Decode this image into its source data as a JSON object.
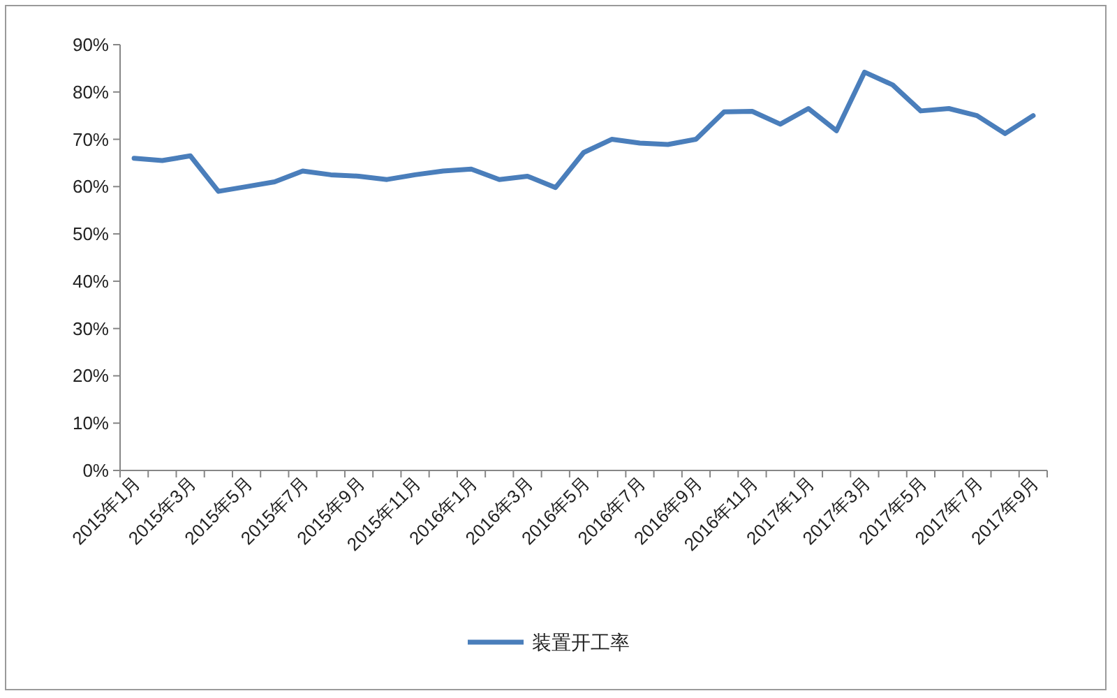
{
  "chart_data": {
    "type": "line",
    "categories": [
      "2015年1月",
      null,
      "2015年3月",
      null,
      "2015年5月",
      null,
      "2015年7月",
      null,
      "2015年9月",
      null,
      "2015年11月",
      null,
      "2016年1月",
      null,
      "2016年3月",
      null,
      "2016年5月",
      null,
      "2016年7月",
      null,
      "2016年9月",
      null,
      "2016年11月",
      null,
      "2017年1月",
      null,
      "2017年3月",
      null,
      "2017年5月",
      null,
      "2017年7月",
      null,
      "2017年9月"
    ],
    "series": [
      {
        "name": "装置开工率",
        "color": "#4a7ebb",
        "values": [
          66,
          65.5,
          66.5,
          59,
          60,
          61,
          63.3,
          62.5,
          62.2,
          61.5,
          62.5,
          63.3,
          63.7,
          61.5,
          62.2,
          59.8,
          67.2,
          70,
          69.2,
          68.9,
          70,
          75.8,
          75.9,
          73.2,
          76.5,
          71.8,
          84.2,
          81.5,
          76,
          76.5,
          75,
          71.2,
          75
        ]
      }
    ],
    "ylim": [
      0,
      90
    ],
    "yticks": [
      {
        "value": 0,
        "label": "0%"
      },
      {
        "value": 10,
        "label": "10%"
      },
      {
        "value": 20,
        "label": "20%"
      },
      {
        "value": 30,
        "label": "30%"
      },
      {
        "value": 40,
        "label": "40%"
      },
      {
        "value": 50,
        "label": "50%"
      },
      {
        "value": 60,
        "label": "60%"
      },
      {
        "value": 70,
        "label": "70%"
      },
      {
        "value": 80,
        "label": "80%"
      },
      {
        "value": 90,
        "label": "90%"
      }
    ],
    "grid": false,
    "legend": "bottom",
    "marker": "none",
    "line_style": "solid"
  }
}
